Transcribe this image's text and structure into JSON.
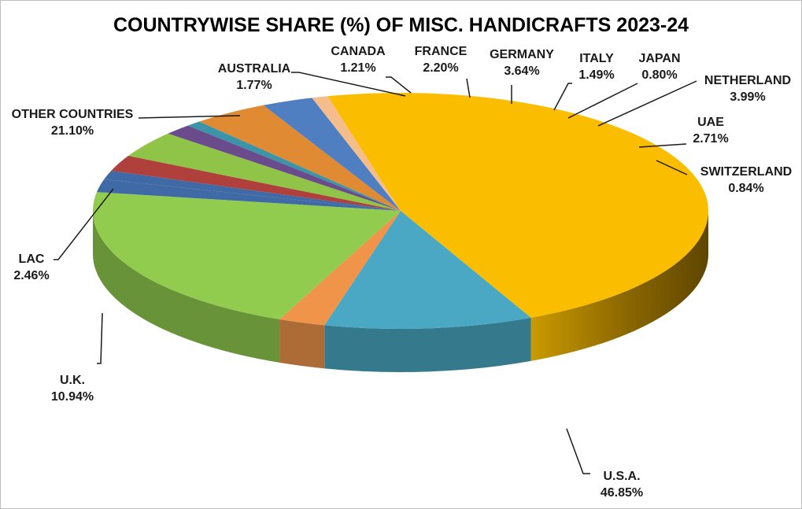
{
  "chart_data": {
    "type": "pie",
    "title": "COUNTRYWISE SHARE (%) OF MISC. HANDICRAFTS 2023-24",
    "slices": [
      {
        "label": "CANADA",
        "value": 1.21,
        "value_label": "1.21%",
        "color": "#3f6aa6"
      },
      {
        "label": "FRANCE",
        "value": 2.2,
        "value_label": "2.20%",
        "color": "#b0403c"
      },
      {
        "label": "GERMANY",
        "value": 3.64,
        "value_label": "3.64%",
        "color": "#8fc448"
      },
      {
        "label": "ITALY",
        "value": 1.49,
        "value_label": "1.49%",
        "color": "#6a4c8c"
      },
      {
        "label": "JAPAN",
        "value": 0.8,
        "value_label": "0.80%",
        "color": "#3b94a8"
      },
      {
        "label": "NETHERLAND",
        "value": 3.99,
        "value_label": "3.99%",
        "color": "#e08a33"
      },
      {
        "label": "UAE",
        "value": 2.71,
        "value_label": "2.71%",
        "color": "#4f7fc0"
      },
      {
        "label": "SWITZERLAND",
        "value": 0.84,
        "value_label": "0.84%",
        "color": "#f5bd8c"
      },
      {
        "label": "U.S.A.",
        "value": 46.85,
        "value_label": "46.85%",
        "color": "#fbbd00"
      },
      {
        "label": "U.K.",
        "value": 10.94,
        "value_label": "10.94%",
        "color": "#4aa8c4"
      },
      {
        "label": "LAC",
        "value": 2.46,
        "value_label": "2.46%",
        "color": "#f0944a"
      },
      {
        "label": "OTHER COUNTRIES",
        "value": 21.1,
        "value_label": "21.10%",
        "color": "#92cc4e"
      },
      {
        "label": "AUSTRALIA",
        "value": 1.77,
        "value_label": "1.77%",
        "color": "#3f6aa6"
      }
    ]
  }
}
